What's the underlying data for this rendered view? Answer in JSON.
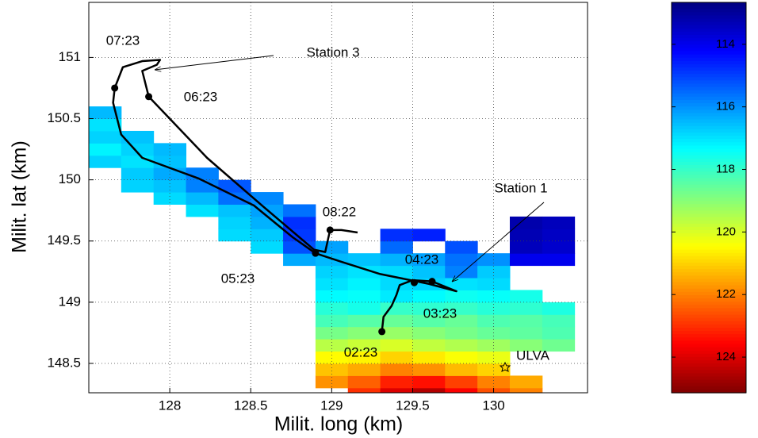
{
  "chart_data": {
    "type": "heatmap",
    "xlabel": "Milit. long (km)",
    "ylabel": "Milit. lat (km)",
    "xlim": [
      127.5,
      130.58
    ],
    "ylim": [
      148.26,
      151.45
    ],
    "xticks": [
      128,
      128.5,
      129,
      129.5,
      130
    ],
    "yticks": [
      148.5,
      149,
      149.5,
      150,
      150.5,
      151
    ],
    "grid": true,
    "colormap": "jet",
    "clim": [
      112.66,
      125.14
    ],
    "cticks": [
      114,
      116,
      118,
      120,
      122,
      124
    ],
    "colorbar_reverse": true,
    "xbins": [
      127.5,
      127.7,
      127.9,
      128.1,
      128.3,
      128.5,
      128.7,
      128.9,
      129.1,
      129.3,
      129.5,
      129.7,
      129.9,
      130.1,
      130.3,
      130.5
    ],
    "ybins": [
      148.2,
      148.3,
      148.4,
      148.5,
      148.6,
      148.7,
      148.8,
      148.9,
      149.0,
      149.1,
      149.2,
      149.3,
      149.4,
      149.5,
      149.6,
      149.7,
      149.8,
      149.9,
      150.0,
      150.1,
      150.2,
      150.3,
      150.4,
      150.5,
      150.6
    ],
    "z": [
      [
        null,
        null,
        null,
        null,
        null,
        null,
        null,
        null,
        123.0,
        124.0,
        124.5,
        123.6,
        122.6,
        122.0,
        null
      ],
      [
        null,
        null,
        null,
        null,
        null,
        null,
        null,
        121.8,
        122.4,
        123.2,
        123.4,
        122.8,
        122.0,
        121.5,
        null
      ],
      [
        null,
        null,
        null,
        null,
        null,
        null,
        null,
        121.2,
        121.5,
        122.0,
        121.8,
        121.3,
        121.0,
        null,
        null
      ],
      [
        null,
        null,
        null,
        null,
        null,
        null,
        null,
        120.5,
        120.6,
        121.0,
        120.7,
        120.4,
        120.2,
        null,
        null
      ],
      [
        null,
        null,
        null,
        null,
        null,
        null,
        null,
        119.6,
        119.8,
        120.0,
        119.7,
        119.5,
        119.3,
        119.0,
        118.7
      ],
      [
        null,
        null,
        null,
        null,
        null,
        null,
        null,
        118.8,
        119.0,
        119.2,
        119.0,
        118.8,
        118.6,
        118.5,
        118.3
      ],
      [
        null,
        null,
        null,
        null,
        null,
        null,
        null,
        118.2,
        118.4,
        118.6,
        118.4,
        118.6,
        118.3,
        118.4,
        118.2
      ],
      [
        null,
        null,
        null,
        null,
        null,
        null,
        null,
        117.8,
        117.6,
        118.0,
        117.9,
        118.0,
        117.8,
        117.9,
        117.7
      ],
      [
        null,
        null,
        null,
        null,
        null,
        null,
        null,
        117.3,
        117.4,
        117.1,
        117.3,
        117.5,
        117.4,
        117.6,
        null
      ],
      [
        null,
        null,
        null,
        null,
        null,
        null,
        null,
        117.0,
        117.2,
        116.9,
        116.8,
        117.0,
        116.9,
        null,
        null
      ],
      [
        null,
        null,
        null,
        null,
        null,
        null,
        null,
        116.8,
        117.0,
        116.9,
        116.6,
        115.8,
        116.7,
        null,
        null
      ],
      [
        null,
        null,
        null,
        null,
        null,
        null,
        116.3,
        116.5,
        116.6,
        116.4,
        116.2,
        115.6,
        116.0,
        114.0,
        114.0
      ],
      [
        null,
        null,
        null,
        null,
        null,
        116.9,
        115.2,
        116.2,
        null,
        115.5,
        null,
        115.2,
        null,
        113.4,
        113.6
      ],
      [
        null,
        null,
        null,
        null,
        116.9,
        116.7,
        114.9,
        null,
        null,
        114.8,
        114.6,
        null,
        null,
        113.3,
        113.5
      ],
      [
        null,
        null,
        null,
        null,
        116.8,
        116.4,
        114.8,
        null,
        null,
        null,
        null,
        null,
        null,
        113.2,
        113.4
      ],
      [
        null,
        null,
        null,
        117.0,
        116.6,
        116.2,
        115.6,
        null,
        null,
        null,
        null,
        null,
        null,
        null,
        null
      ],
      [
        null,
        null,
        116.9,
        116.5,
        115.6,
        115.9,
        null,
        null,
        null,
        null,
        null,
        null,
        null,
        null,
        null
      ],
      [
        null,
        116.8,
        116.6,
        115.8,
        115.3,
        null,
        null,
        null,
        null,
        null,
        null,
        null,
        null,
        null,
        null
      ],
      [
        null,
        116.7,
        116.3,
        115.8,
        null,
        null,
        null,
        null,
        null,
        null,
        null,
        null,
        null,
        null,
        null
      ],
      [
        116.8,
        117.0,
        116.6,
        null,
        null,
        null,
        null,
        null,
        null,
        null,
        null,
        null,
        null,
        null,
        null
      ],
      [
        117.2,
        116.8,
        116.5,
        null,
        null,
        null,
        null,
        null,
        null,
        null,
        null,
        null,
        null,
        null,
        null
      ],
      [
        116.8,
        116.6,
        null,
        null,
        null,
        null,
        null,
        null,
        null,
        null,
        null,
        null,
        null,
        null,
        null
      ],
      [
        117.0,
        null,
        null,
        null,
        null,
        null,
        null,
        null,
        null,
        null,
        null,
        null,
        null,
        null,
        null
      ],
      [
        116.5,
        null,
        null,
        null,
        null,
        null,
        null,
        null,
        null,
        null,
        null,
        null,
        null,
        null,
        null
      ]
    ],
    "series": [
      {
        "type": "line",
        "color": "#000000",
        "x": [
          129.31,
          129.32,
          129.37,
          129.4,
          129.42,
          129.5,
          129.62,
          129.77,
          129.6,
          129.3,
          129.06,
          128.9,
          128.76,
          128.52,
          128.18,
          127.83,
          127.7,
          127.65,
          127.66,
          127.71,
          127.83,
          127.94,
          127.92,
          127.83,
          127.87,
          128.23,
          128.57,
          128.89,
          128.96,
          128.99,
          129.06,
          129.16
        ],
        "y": [
          148.76,
          148.88,
          148.97,
          149.06,
          149.14,
          149.18,
          149.17,
          149.09,
          149.15,
          149.23,
          149.33,
          149.4,
          149.53,
          149.79,
          150.01,
          150.18,
          150.37,
          150.63,
          150.75,
          150.92,
          150.97,
          150.98,
          150.94,
          150.89,
          150.68,
          150.18,
          149.79,
          149.43,
          149.41,
          149.59,
          149.59,
          149.57
        ]
      },
      {
        "type": "scatter",
        "color": "#000000",
        "x": [
          129.31,
          129.51,
          129.62,
          128.9,
          127.66,
          127.87,
          128.99
        ],
        "y": [
          148.76,
          149.16,
          149.17,
          149.4,
          150.75,
          150.68,
          149.59
        ]
      }
    ],
    "annotations": [
      "07:23",
      "Station 3",
      "06:23",
      "08:22",
      "Station 1",
      "04:23",
      "05:23",
      "03:23",
      "02:23",
      "ULVA"
    ]
  }
}
